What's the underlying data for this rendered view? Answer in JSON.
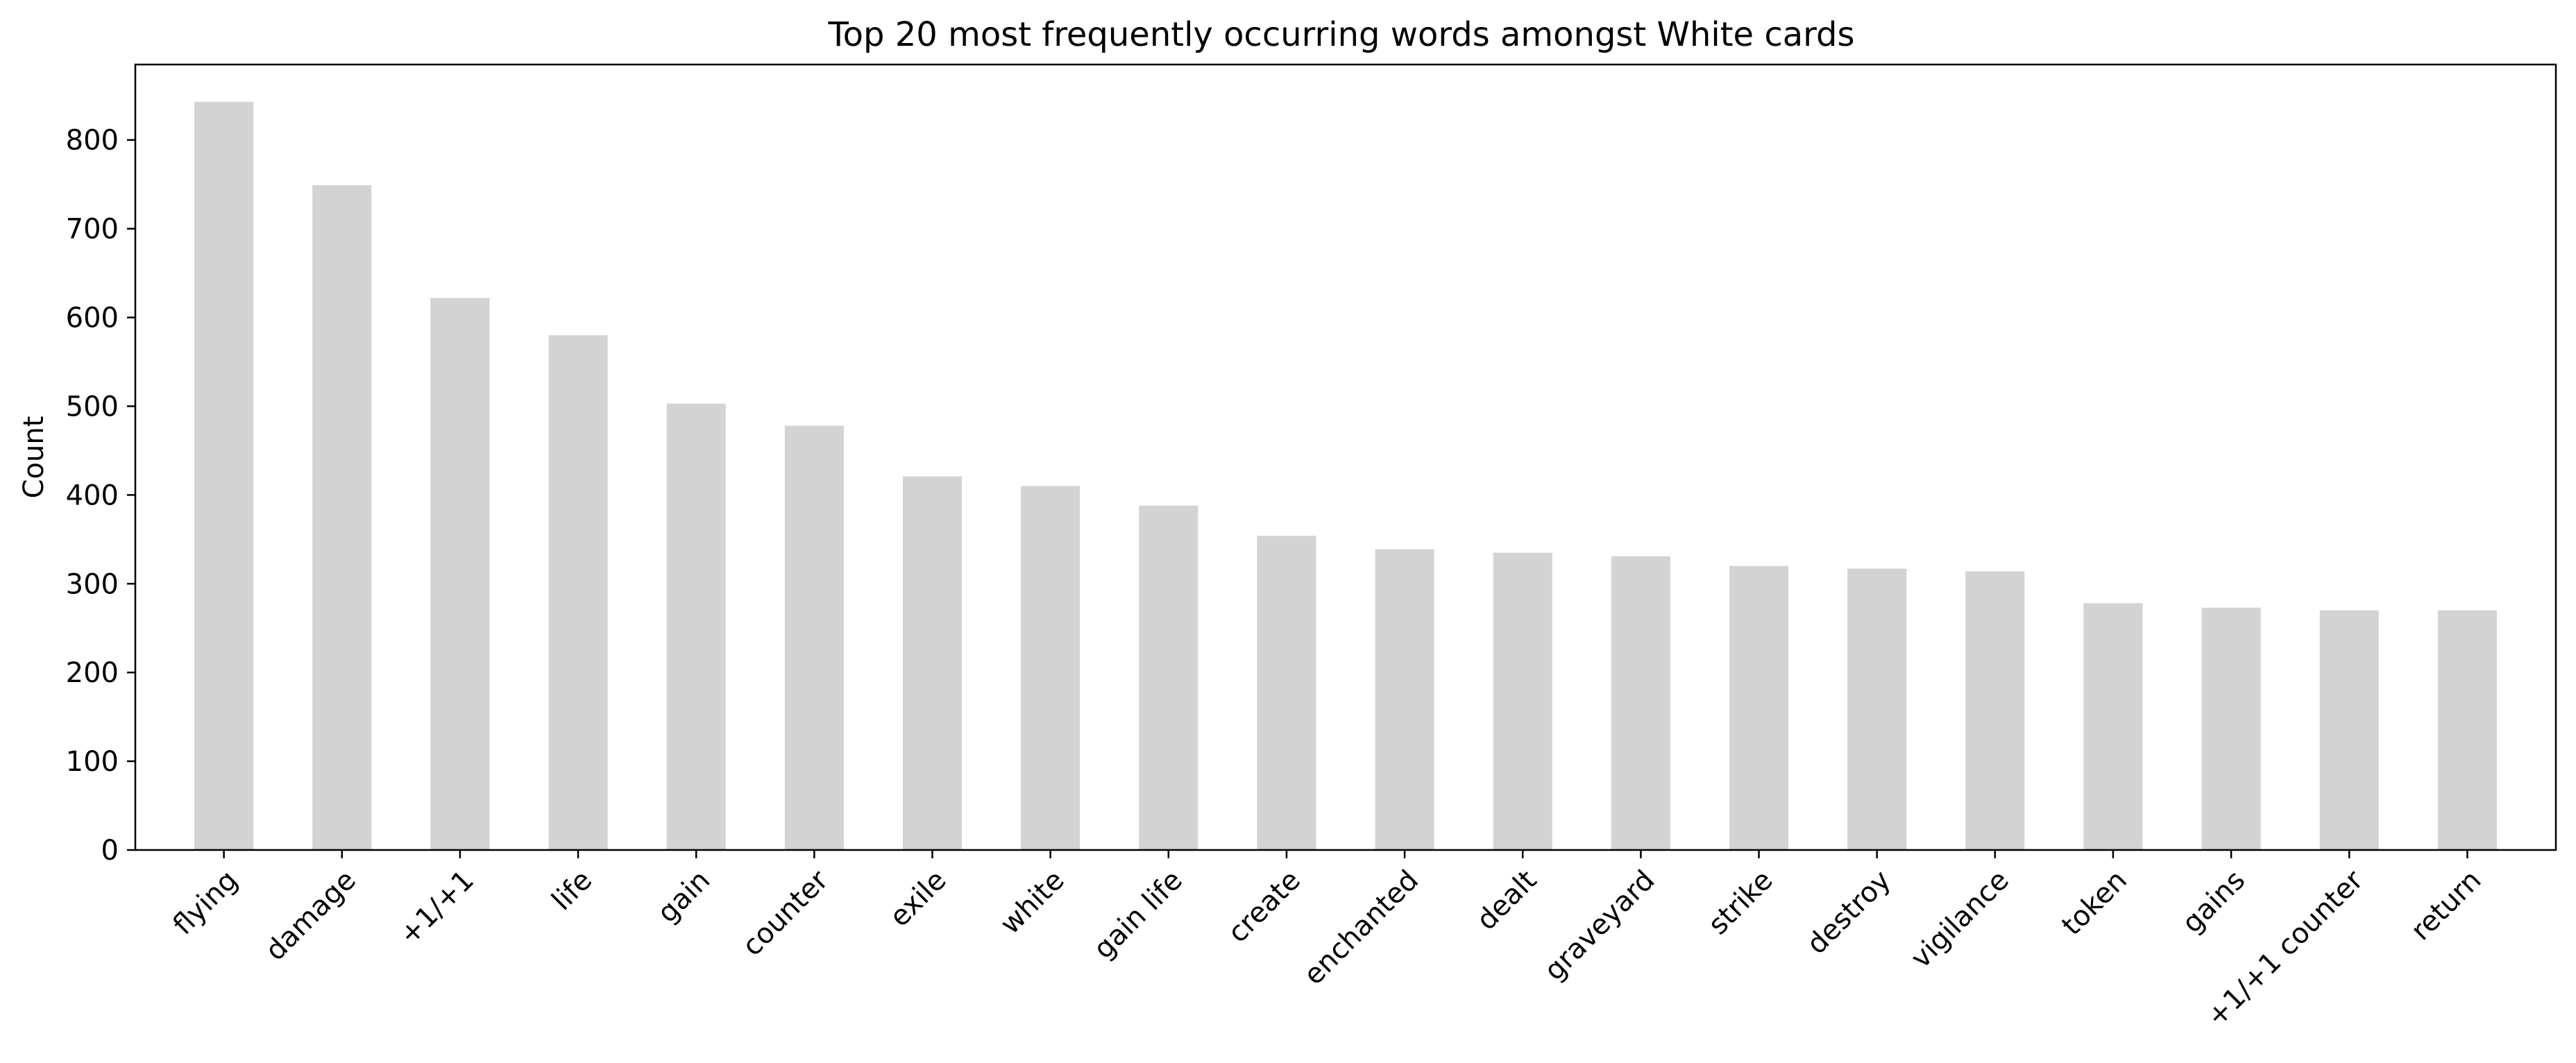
{
  "chart_data": {
    "type": "bar",
    "title": "Top 20 most frequently occurring words amongst White cards",
    "xlabel": "",
    "ylabel": "Count",
    "categories": [
      "flying",
      "damage",
      "+1/+1",
      "life",
      "gain",
      "counter",
      "exile",
      "white",
      "gain life",
      "create",
      "enchanted",
      "dealt",
      "graveyard",
      "strike",
      "destroy",
      "vigilance",
      "token",
      "gains",
      "+1/+1 counter",
      "return"
    ],
    "values": [
      843,
      749,
      622,
      580,
      503,
      478,
      421,
      410,
      388,
      354,
      339,
      335,
      331,
      320,
      317,
      314,
      278,
      273,
      270,
      270
    ],
    "ylim": [
      0,
      885
    ],
    "yticks": [
      0,
      100,
      200,
      300,
      400,
      500,
      600,
      700,
      800
    ],
    "bar_color": "#d3d3d3",
    "grid": false,
    "legend": false
  }
}
